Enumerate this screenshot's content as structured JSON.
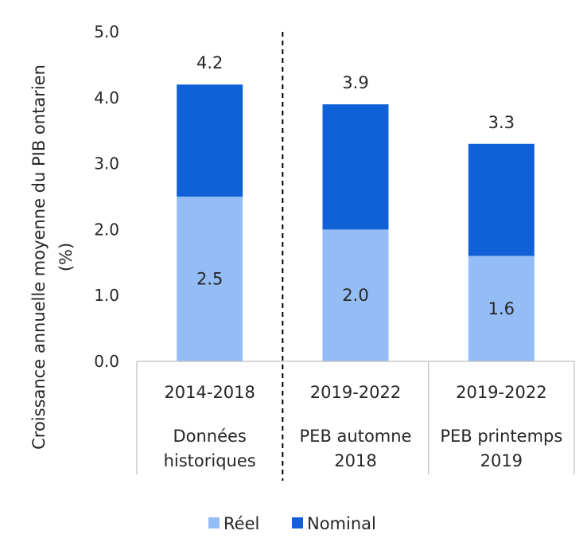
{
  "chart_data": {
    "type": "bar",
    "stacked": true,
    "ylabel_line1": "Croissance annuelle moyenne du PIB ontarien",
    "ylabel_line2": "(%)",
    "ylim": [
      0,
      5
    ],
    "yticks": [
      "0.0",
      "1.0",
      "2.0",
      "3.0",
      "4.0",
      "5.0"
    ],
    "grid": false,
    "legend_position": "bottom",
    "categories": [
      {
        "period": "2014-2018",
        "label_line1": "Données",
        "label_line2": "historiques"
      },
      {
        "period": "2019-2022",
        "label_line1": "PEB automne",
        "label_line2": "2018"
      },
      {
        "period": "2019-2022",
        "label_line1": "PEB printemps",
        "label_line2": "2019"
      }
    ],
    "series": [
      {
        "name": "Réel",
        "color": "#95bdf5",
        "values": [
          2.5,
          2.0,
          1.6
        ],
        "labels": [
          "2.5",
          "2.0",
          "1.6"
        ]
      },
      {
        "name": "Nominal",
        "color": "#1060d8",
        "totals": [
          4.2,
          3.9,
          3.3
        ],
        "labels": [
          "4.2",
          "3.9",
          "3.3"
        ]
      }
    ],
    "divider_after_category": 0
  }
}
